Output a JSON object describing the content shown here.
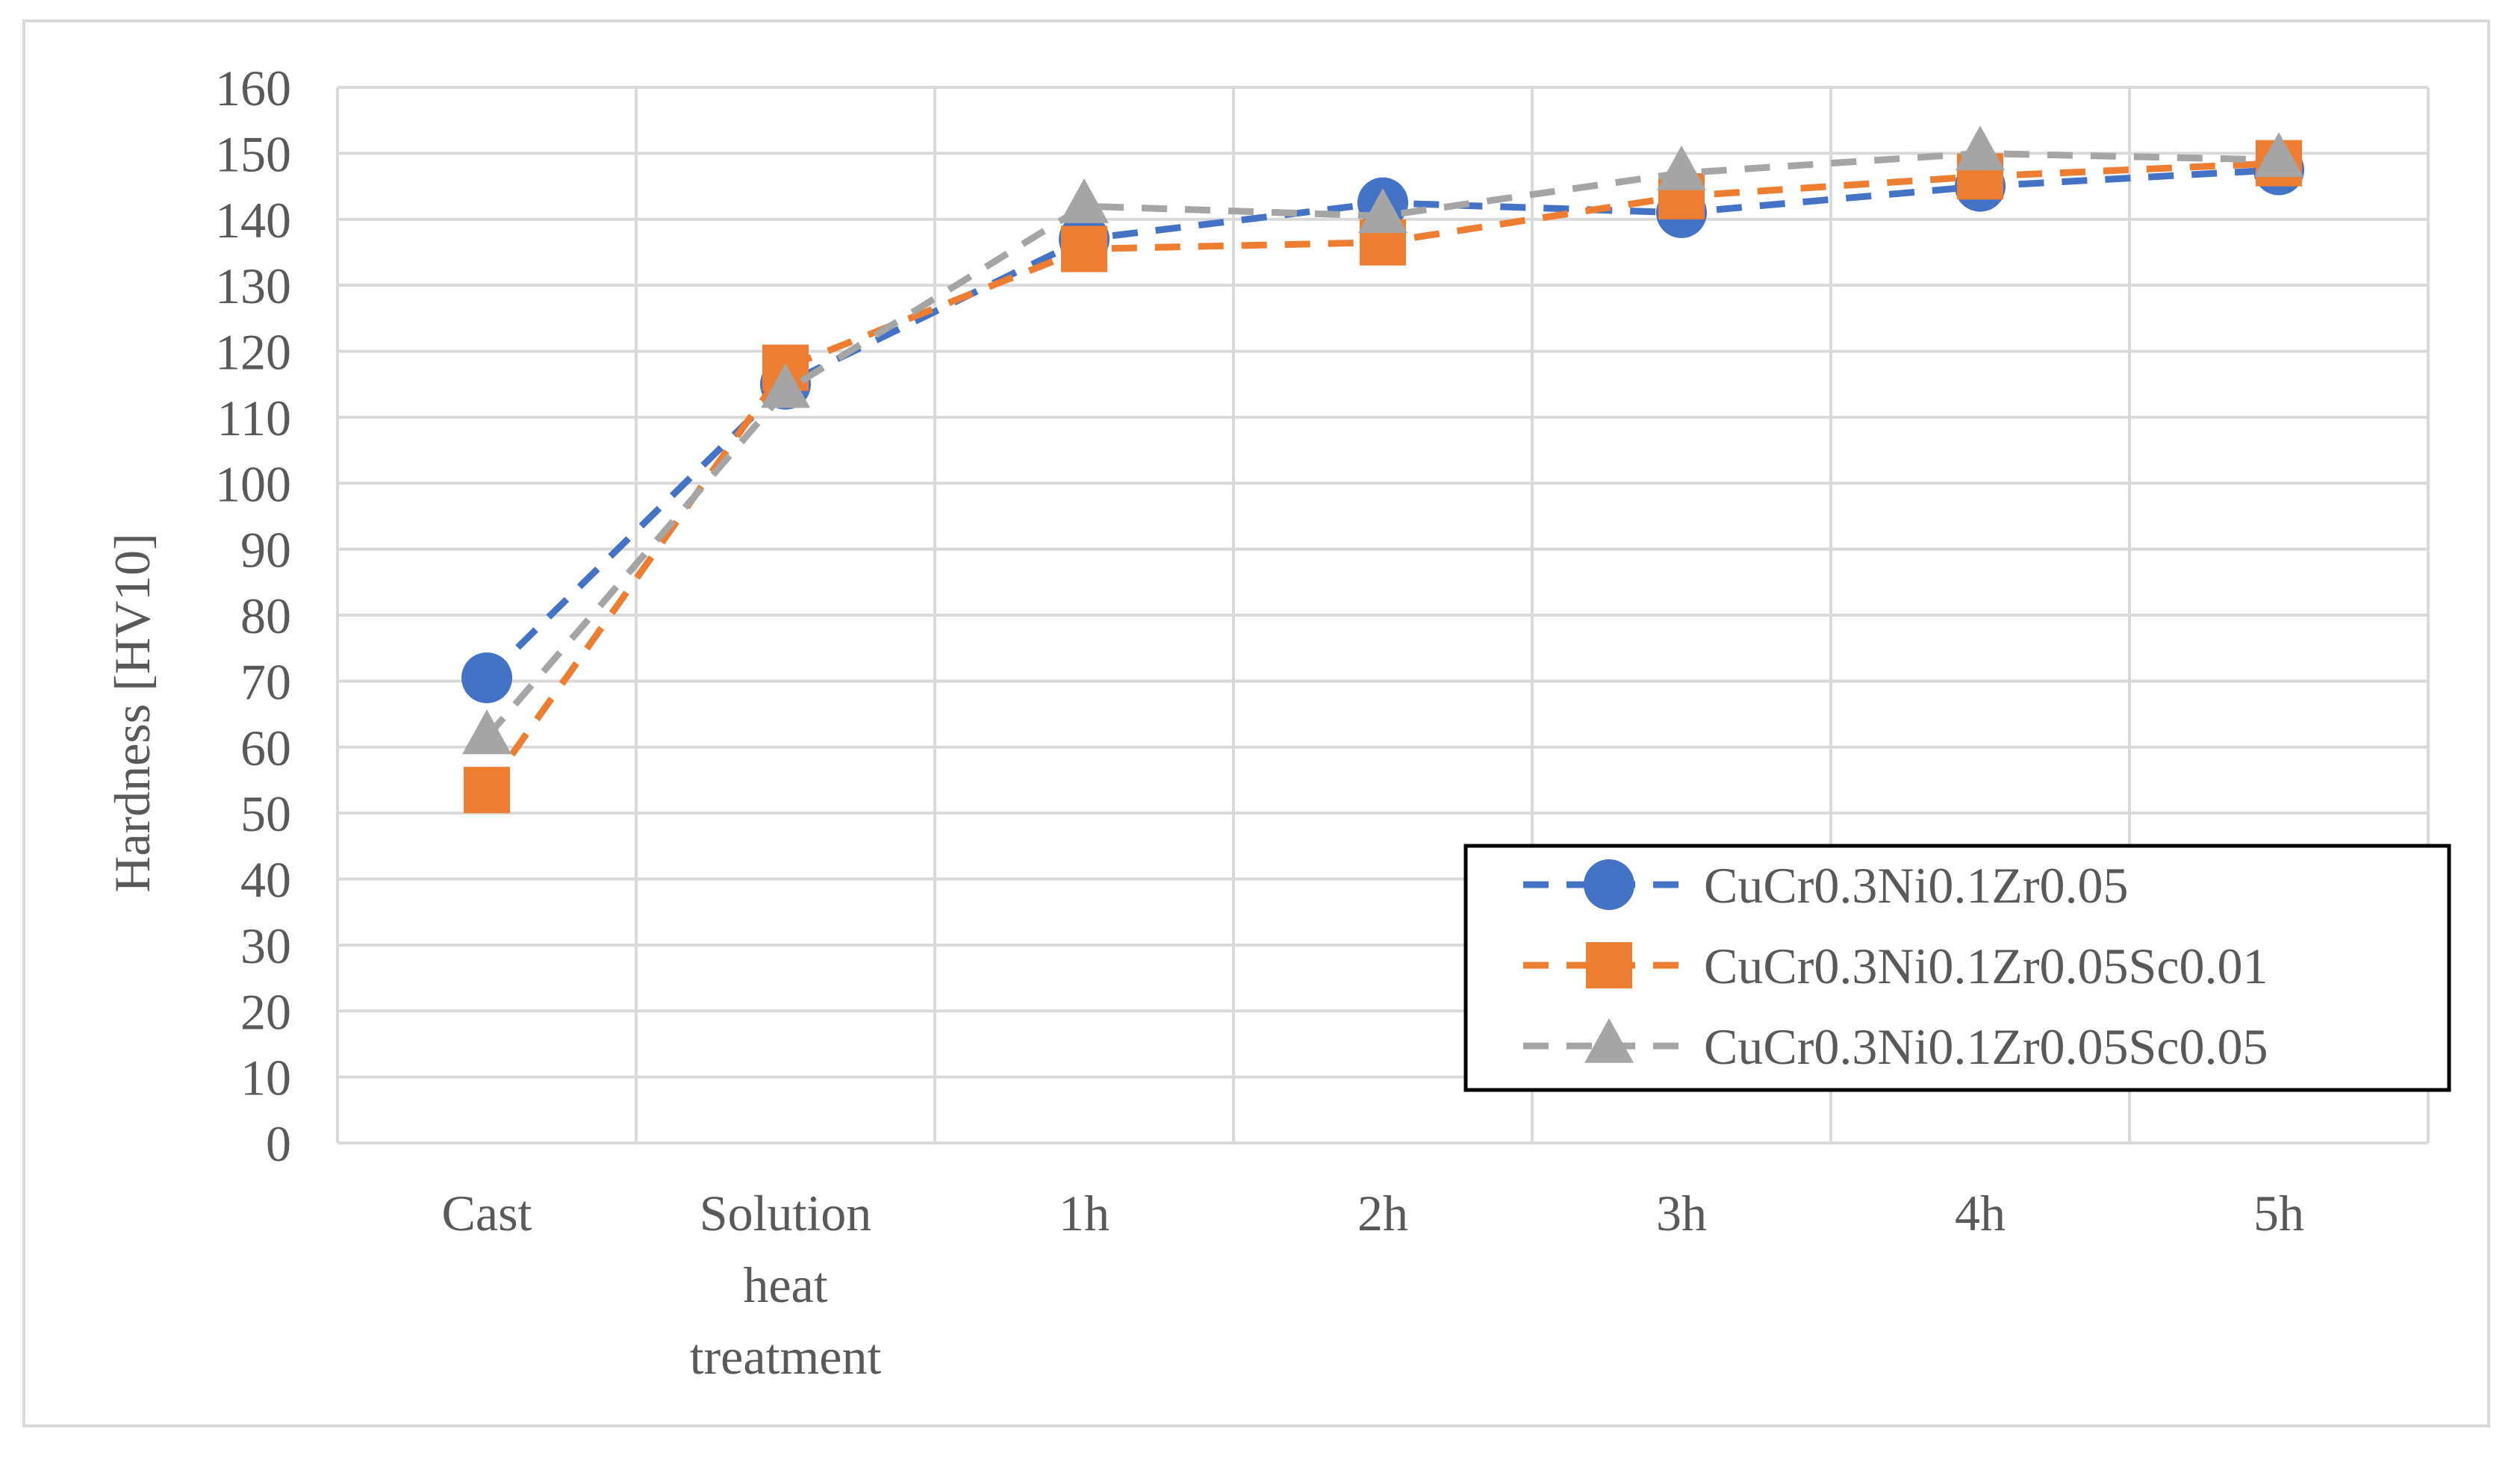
{
  "chart_data": {
    "type": "line",
    "title": "",
    "xlabel": "",
    "ylabel": "Hardness [HV10]",
    "ylim": [
      0,
      160
    ],
    "ytick_step": 10,
    "grid": true,
    "legend_position": "bottom-right",
    "categories": [
      [
        "Cast"
      ],
      [
        "Solution",
        "heat",
        "treatment"
      ],
      [
        "1h"
      ],
      [
        "2h"
      ],
      [
        "3h"
      ],
      [
        "4h"
      ],
      [
        "5h"
      ]
    ],
    "series": [
      {
        "name": "CuCr0.3Ni0.1Zr0.05",
        "color": "#4472C4",
        "marker": "circle",
        "values": [
          70.5,
          115,
          137,
          142.5,
          141,
          145,
          147.5
        ]
      },
      {
        "name": "CuCr0.3Ni0.1Zr0.05Sc0.01",
        "color": "#ED7D31",
        "marker": "square",
        "values": [
          53.5,
          117.5,
          135.5,
          136.5,
          143.5,
          146.5,
          148.5
        ]
      },
      {
        "name": "CuCr0.3Ni0.1Zr0.05Sc0.05",
        "color": "#A5A5A5",
        "marker": "triangle",
        "values": [
          61.5,
          114,
          142,
          140.5,
          147,
          150,
          149
        ]
      }
    ]
  }
}
